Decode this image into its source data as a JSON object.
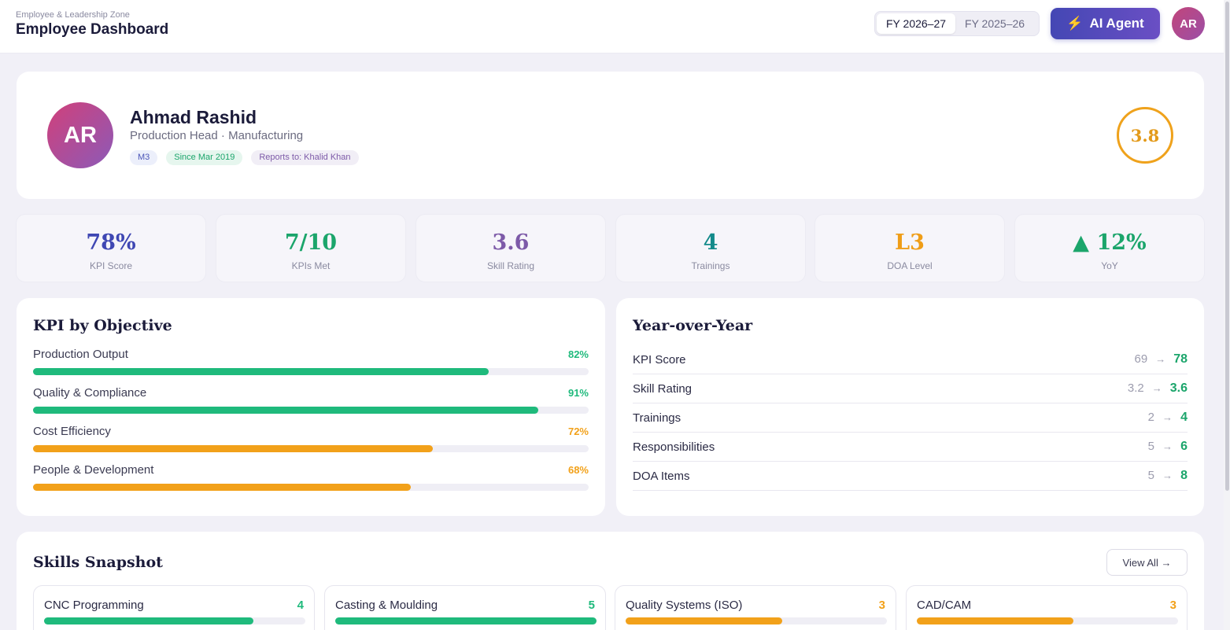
{
  "header": {
    "subtitle": "Employee & Leadership Zone",
    "title": "Employee Dashboard",
    "fy_tabs": [
      {
        "label": "FY 2026–27",
        "active": true
      },
      {
        "label": "FY 2025–26",
        "active": false
      }
    ],
    "ai_button": "AI Agent",
    "user_initials": "AR"
  },
  "profile": {
    "initials": "AR",
    "name": "Ahmad Rashid",
    "role": "Production Head · Manufacturing",
    "chips": [
      "M3",
      "Since Mar 2019",
      "Reports to: Khalid Khan"
    ],
    "overall_score": "3.8"
  },
  "stats": [
    {
      "value": "78%",
      "label": "KPI Score",
      "color": "#3f47b3"
    },
    {
      "value": "7/10",
      "label": "KPIs Met",
      "color": "#1ba56b"
    },
    {
      "value": "3.6",
      "label": "Skill Rating",
      "color": "#7d5aa8"
    },
    {
      "value": "4",
      "label": "Trainings",
      "color": "#138a8a"
    },
    {
      "value": "L3",
      "label": "DOA Level",
      "color": "#ef9d17"
    },
    {
      "value": "▲ 12%",
      "label": "YoY",
      "color": "#1ba56b"
    }
  ],
  "kpi_objectives": {
    "title": "KPI by Objective",
    "items": [
      {
        "name": "Production Output",
        "pct_label": "82%",
        "pct": 82,
        "color": "#1fba7c"
      },
      {
        "name": "Quality & Compliance",
        "pct_label": "91%",
        "pct": 91,
        "color": "#1fba7c"
      },
      {
        "name": "Cost Efficiency",
        "pct_label": "72%",
        "pct": 72,
        "color": "#f2a11a"
      },
      {
        "name": "People & Development",
        "pct_label": "68%",
        "pct": 68,
        "color": "#f2a11a"
      }
    ]
  },
  "yoy": {
    "title": "Year-over-Year",
    "arrow": "→",
    "rows": [
      {
        "name": "KPI Score",
        "prev": "69",
        "curr": "78"
      },
      {
        "name": "Skill Rating",
        "prev": "3.2",
        "curr": "3.6"
      },
      {
        "name": "Trainings",
        "prev": "2",
        "curr": "4"
      },
      {
        "name": "Responsibilities",
        "prev": "5",
        "curr": "6"
      },
      {
        "name": "DOA Items",
        "prev": "5",
        "curr": "8"
      }
    ]
  },
  "skills": {
    "title": "Skills Snapshot",
    "view_all": "View All →",
    "items": [
      {
        "name": "CNC Programming",
        "level": "4",
        "pct": 80,
        "color": "#1fba7c"
      },
      {
        "name": "Casting & Moulding",
        "level": "5",
        "pct": 100,
        "color": "#1fba7c"
      },
      {
        "name": "Quality Systems (ISO)",
        "level": "3",
        "pct": 60,
        "color": "#f2a11a"
      },
      {
        "name": "CAD/CAM",
        "level": "3",
        "pct": 60,
        "color": "#f2a11a"
      }
    ]
  }
}
